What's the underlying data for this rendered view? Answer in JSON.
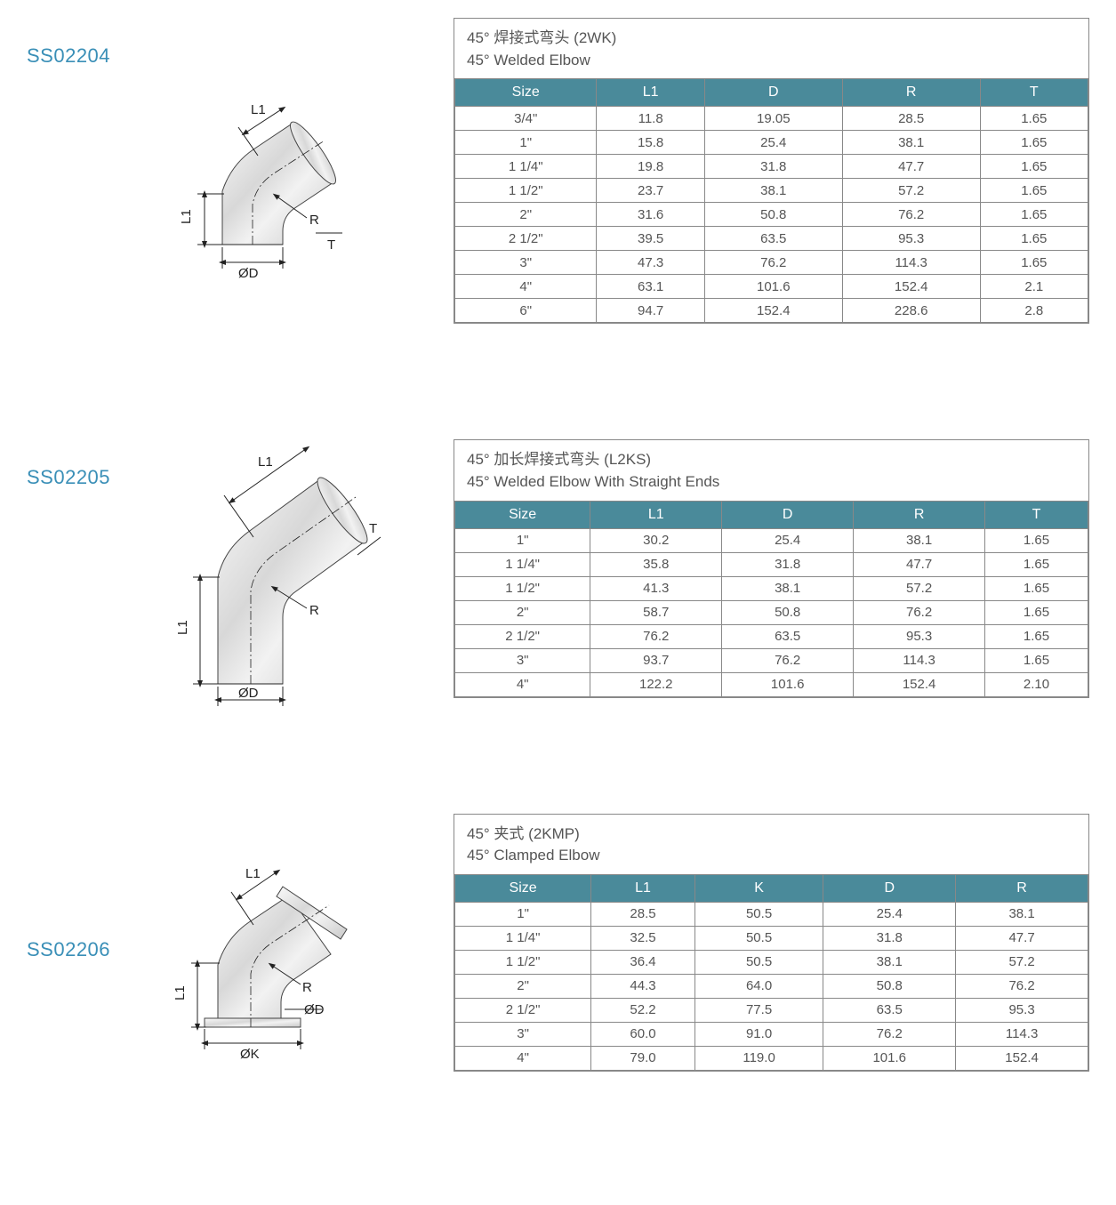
{
  "colors": {
    "sku": "#3a8fb7",
    "header_bg": "#4a8a9a",
    "header_text": "#ffffff",
    "border": "#888888",
    "text": "#555555",
    "diagram_stroke": "#222222"
  },
  "diagram_labels": {
    "L1": "L1",
    "R": "R",
    "T": "T",
    "D": "ØD",
    "K": "ØK"
  },
  "products": [
    {
      "sku": "SS02204",
      "title_cn": "45°  焊接式弯头 (2WK)",
      "title_en": "45°   Welded Elbow",
      "columns": [
        "Size",
        "L1",
        "D",
        "R",
        "T"
      ],
      "rows": [
        [
          "3/4\"",
          "11.8",
          "19.05",
          "28.5",
          "1.65"
        ],
        [
          "1\"",
          "15.8",
          "25.4",
          "38.1",
          "1.65"
        ],
        [
          "1 1/4\"",
          "19.8",
          "31.8",
          "47.7",
          "1.65"
        ],
        [
          "1 1/2\"",
          "23.7",
          "38.1",
          "57.2",
          "1.65"
        ],
        [
          "2\"",
          "31.6",
          "50.8",
          "76.2",
          "1.65"
        ],
        [
          "2 1/2\"",
          "39.5",
          "63.5",
          "95.3",
          "1.65"
        ],
        [
          "3\"",
          "47.3",
          "76.2",
          "114.3",
          "1.65"
        ],
        [
          "4\"",
          "63.1",
          "101.6",
          "152.4",
          "2.1"
        ],
        [
          "6\"",
          "94.7",
          "152.4",
          "228.6",
          "2.8"
        ]
      ]
    },
    {
      "sku": "SS02205",
      "title_cn": "45°  加长焊接式弯头 (L2KS)",
      "title_en": "45°   Welded Elbow With Straight Ends",
      "columns": [
        "Size",
        "L1",
        "D",
        "R",
        "T"
      ],
      "rows": [
        [
          "1\"",
          "30.2",
          "25.4",
          "38.1",
          "1.65"
        ],
        [
          "1 1/4\"",
          "35.8",
          "31.8",
          "47.7",
          "1.65"
        ],
        [
          "1 1/2\"",
          "41.3",
          "38.1",
          "57.2",
          "1.65"
        ],
        [
          "2\"",
          "58.7",
          "50.8",
          "76.2",
          "1.65"
        ],
        [
          "2 1/2\"",
          "76.2",
          "63.5",
          "95.3",
          "1.65"
        ],
        [
          "3\"",
          "93.7",
          "76.2",
          "114.3",
          "1.65"
        ],
        [
          "4\"",
          "122.2",
          "101.6",
          "152.4",
          "2.10"
        ]
      ]
    },
    {
      "sku": "SS02206",
      "title_cn": "45°  夹式 (2KMP)",
      "title_en": "45°   Clamped Elbow",
      "columns": [
        "Size",
        "L1",
        "K",
        "D",
        "R"
      ],
      "rows": [
        [
          "1\"",
          "28.5",
          "50.5",
          "25.4",
          "38.1"
        ],
        [
          "1 1/4\"",
          "32.5",
          "50.5",
          "31.8",
          "47.7"
        ],
        [
          "1 1/2\"",
          "36.4",
          "50.5",
          "38.1",
          "57.2"
        ],
        [
          "2\"",
          "44.3",
          "64.0",
          "50.8",
          "76.2"
        ],
        [
          "2 1/2\"",
          "52.2",
          "77.5",
          "63.5",
          "95.3"
        ],
        [
          "3\"",
          "60.0",
          "91.0",
          "76.2",
          "114.3"
        ],
        [
          "4\"",
          "79.0",
          "119.0",
          "101.6",
          "152.4"
        ]
      ]
    }
  ]
}
